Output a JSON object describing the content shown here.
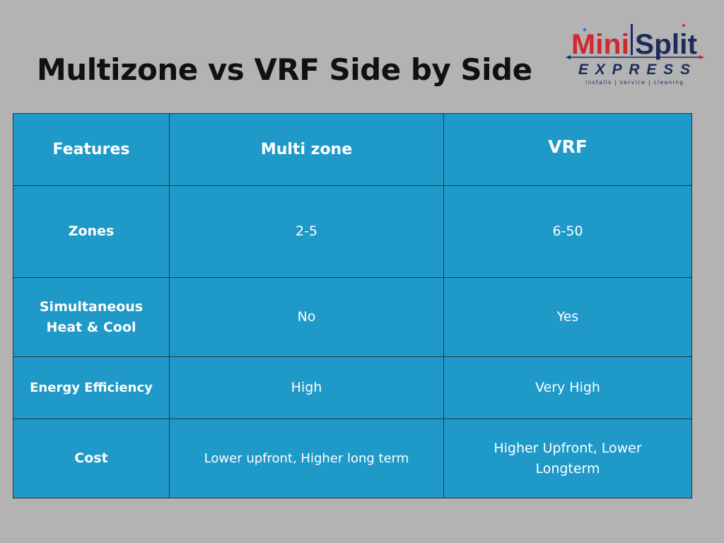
{
  "title": "Multizone vs VRF Side by Side",
  "logo": {
    "word_mini": "Mini",
    "word_split": "Split",
    "word_express": "EXPRESS",
    "tagline": "installs | service | cleaning",
    "colors": {
      "red": "#d0282f",
      "navy": "#1e2b5a"
    }
  },
  "table": {
    "headers": [
      "Features",
      "Multi zone",
      "VRF"
    ],
    "rows": [
      {
        "feature": "Zones",
        "multizone": "2-5",
        "vrf": "6-50"
      },
      {
        "feature": "Simultaneous Heat & Cool",
        "multizone": "No",
        "vrf": "Yes"
      },
      {
        "feature": "Energy Efficiency",
        "multizone": "High",
        "vrf": "Very High"
      },
      {
        "feature": "Cost",
        "multizone": "Lower upfront, Higher long term",
        "vrf": "Higher Upfront, Lower Longterm"
      }
    ]
  },
  "colors": {
    "background": "#b3b3b3",
    "table_fill": "#1f99c8",
    "table_border": "#2b3440",
    "title_text": "#111111"
  }
}
